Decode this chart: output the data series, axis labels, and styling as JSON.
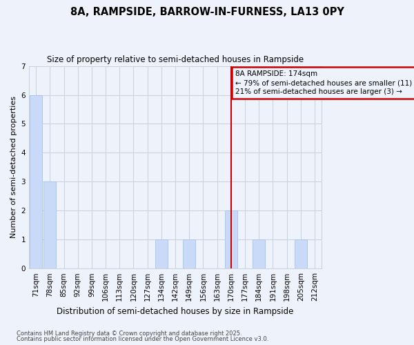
{
  "title1": "8A, RAMPSIDE, BARROW-IN-FURNESS, LA13 0PY",
  "title2": "Size of property relative to semi-detached houses in Rampside",
  "xlabel": "Distribution of semi-detached houses by size in Rampside",
  "ylabel": "Number of semi-detached properties",
  "categories": [
    "71sqm",
    "78sqm",
    "85sqm",
    "92sqm",
    "99sqm",
    "106sqm",
    "113sqm",
    "120sqm",
    "127sqm",
    "134sqm",
    "142sqm",
    "149sqm",
    "156sqm",
    "163sqm",
    "170sqm",
    "177sqm",
    "184sqm",
    "191sqm",
    "198sqm",
    "205sqm",
    "212sqm"
  ],
  "values": [
    6,
    3,
    0,
    0,
    0,
    0,
    0,
    0,
    0,
    1,
    0,
    1,
    0,
    0,
    2,
    0,
    1,
    0,
    0,
    1,
    0
  ],
  "bar_color": "#c9daf8",
  "bar_edge_color": "#a4c2f4",
  "subject_line_index": 14,
  "subject_line_color": "#cc0000",
  "annotation_box_color": "#cc0000",
  "annotation_text": "8A RAMPSIDE: 174sqm\n← 79% of semi-detached houses are smaller (11)\n21% of semi-detached houses are larger (3) →",
  "annotation_fontsize": 7.5,
  "ylim": [
    0,
    7
  ],
  "yticks": [
    0,
    1,
    2,
    3,
    4,
    5,
    6,
    7
  ],
  "footer1": "Contains HM Land Registry data © Crown copyright and database right 2025.",
  "footer2": "Contains public sector information licensed under the Open Government Licence v3.0.",
  "bg_color": "#eef2fb",
  "grid_color": "#c8d0e0"
}
